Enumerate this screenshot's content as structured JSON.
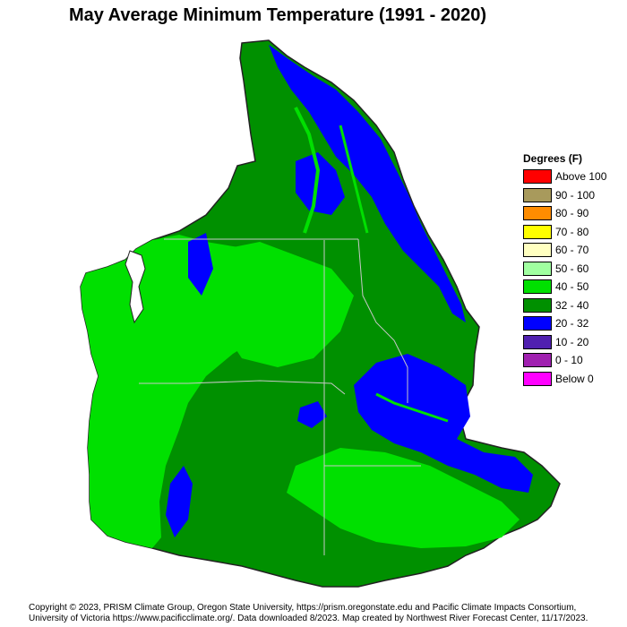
{
  "title": "May Average Minimum Temperature (1991 - 2020)",
  "legend": {
    "title": "Degrees (F)",
    "items": [
      {
        "label": "Above 100",
        "color": "#ff0000"
      },
      {
        "label": "90 - 100",
        "color": "#a89a5c"
      },
      {
        "label": "80 - 90",
        "color": "#ff8c00"
      },
      {
        "label": "70 - 80",
        "color": "#ffff00"
      },
      {
        "label": "60 - 70",
        "color": "#ffffc0"
      },
      {
        "label": "50 - 60",
        "color": "#a0ffa0"
      },
      {
        "label": "40 - 50",
        "color": "#00e000"
      },
      {
        "label": "32 - 40",
        "color": "#009000"
      },
      {
        "label": "20 - 32",
        "color": "#0000ff"
      },
      {
        "label": "10 - 20",
        "color": "#5020b0"
      },
      {
        "label": "0 - 10",
        "color": "#a020b0"
      },
      {
        "label": "Below 0",
        "color": "#ff00ff"
      }
    ]
  },
  "footer": {
    "line1": "Copyright © 2023, PRISM Climate Group, Oregon State University, https://prism.oregonstate.edu and Pacific Climate Impacts Consortium,",
    "line2": "University of Victoria https://www.pacificclimate.org/.  Data downloaded 8/2023. Map created by Northwest River Forecast Center, 11/17/2023."
  }
}
